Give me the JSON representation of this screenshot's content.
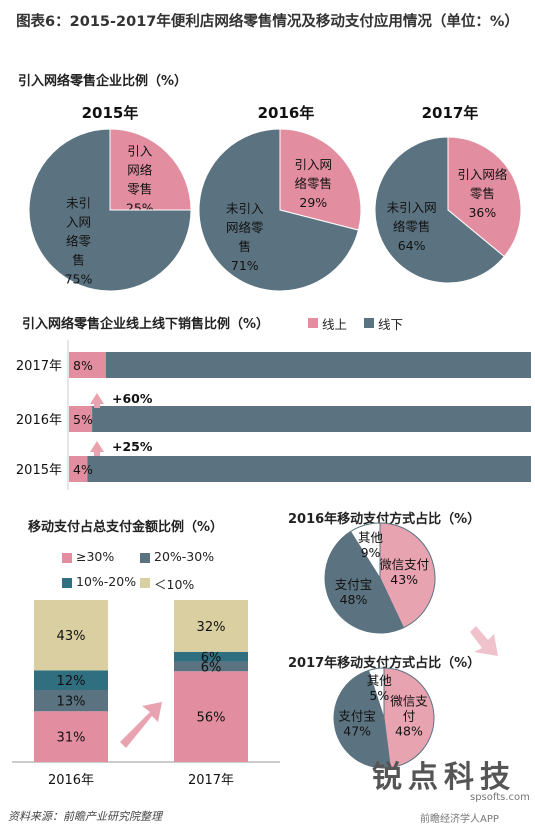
{
  "title": "图表6：2015-2017年便利店网络零售情况及移动支付应用情况（单位：%）",
  "source_text": "资料来源：前瞻产业研究院整理",
  "watermark": {
    "logo_text": "锐点科技",
    "url": "spsofts.com",
    "app_text": "前瞻经济学人APP"
  },
  "colors": {
    "pink": "#e38ea0",
    "slate": "#5b7380",
    "teal": "#2f6f80",
    "khaki": "#d9cfa1"
  },
  "chart_data": [
    {
      "type": "pie",
      "section_title": "引入网络零售企业比例（%）",
      "title": "2015年",
      "slices": [
        {
          "label_lines": [
            "引入",
            "网络",
            "零售",
            "25%"
          ],
          "value": 25,
          "color": "#e38ea0"
        },
        {
          "label_lines": [
            "未引",
            "入网",
            "络零",
            "售",
            "75%"
          ],
          "value": 75,
          "color": "#5b7380"
        }
      ]
    },
    {
      "type": "pie",
      "title": "2016年",
      "slices": [
        {
          "label_lines": [
            "引入网",
            "络零售",
            "29%"
          ],
          "value": 29,
          "color": "#e38ea0"
        },
        {
          "label_lines": [
            "未引入",
            "网络零",
            "售",
            "71%"
          ],
          "value": 71,
          "color": "#5b7380"
        }
      ]
    },
    {
      "type": "pie",
      "title": "2017年",
      "slices": [
        {
          "label_lines": [
            "引入网络",
            "零售",
            "36%"
          ],
          "value": 36,
          "color": "#e38ea0"
        },
        {
          "label_lines": [
            "未引入网",
            "络零售",
            "64%"
          ],
          "value": 64,
          "color": "#5b7380"
        }
      ]
    },
    {
      "type": "bar",
      "orientation": "horizontal",
      "stacked": true,
      "title": "引入网络零售企业线上线下销售比例（%）",
      "legend": "top-right",
      "categories": [
        "2017年",
        "2016年",
        "2015年"
      ],
      "series": [
        {
          "name": "线上",
          "values": [
            8,
            5,
            4
          ],
          "color": "#e38ea0"
        },
        {
          "name": "线下",
          "values": [
            92,
            95,
            96
          ],
          "color": "#5b7380"
        }
      ],
      "value_labels": [
        "8%",
        "5%",
        "4%"
      ],
      "annotations": [
        {
          "text": "+60%",
          "between": [
            "2016年",
            "2017年"
          ]
        },
        {
          "text": "+25%",
          "between": [
            "2015年",
            "2016年"
          ]
        }
      ]
    },
    {
      "type": "bar",
      "orientation": "vertical",
      "stacked": true,
      "title": "移动支付占总支付金额比例（%）",
      "legend": "top",
      "categories": [
        "2016年",
        "2017年"
      ],
      "series": [
        {
          "name": "≥30%",
          "values": [
            31,
            56
          ],
          "labels": [
            "31%",
            "56%"
          ],
          "color": "#e38ea0"
        },
        {
          "name": "20%-30%",
          "values": [
            13,
            6
          ],
          "labels": [
            "13%",
            "6%"
          ],
          "color": "#5b7380"
        },
        {
          "name": "10%-20%",
          "values": [
            12,
            6
          ],
          "labels": [
            "12%",
            "6%"
          ],
          "color": "#2f6f80"
        },
        {
          "name": "＜10%",
          "values": [
            43,
            32
          ],
          "labels": [
            "43%",
            "32%"
          ],
          "color": "#d9cfa1"
        }
      ]
    },
    {
      "type": "pie",
      "title": "2016年移动支付方式占比（%）",
      "slices": [
        {
          "label_lines": [
            "微信支付",
            "43%"
          ],
          "value": 43,
          "color": "#e8a3b1"
        },
        {
          "label_lines": [
            "支付宝",
            "48%"
          ],
          "value": 48,
          "color": "#5b7380"
        },
        {
          "label_lines": [
            "其他",
            "9%"
          ],
          "value": 9,
          "color": "#ffffff"
        }
      ]
    },
    {
      "type": "pie",
      "title": "2017年移动支付方式占比（%）",
      "slices": [
        {
          "label_lines": [
            "微信支",
            "付",
            "48%"
          ],
          "value": 48,
          "color": "#e8a3b1"
        },
        {
          "label_lines": [
            "支付宝",
            "47%"
          ],
          "value": 47,
          "color": "#5b7380"
        },
        {
          "label_lines": [
            "其他",
            "5%"
          ],
          "value": 5,
          "color": "#ffffff"
        }
      ]
    }
  ]
}
